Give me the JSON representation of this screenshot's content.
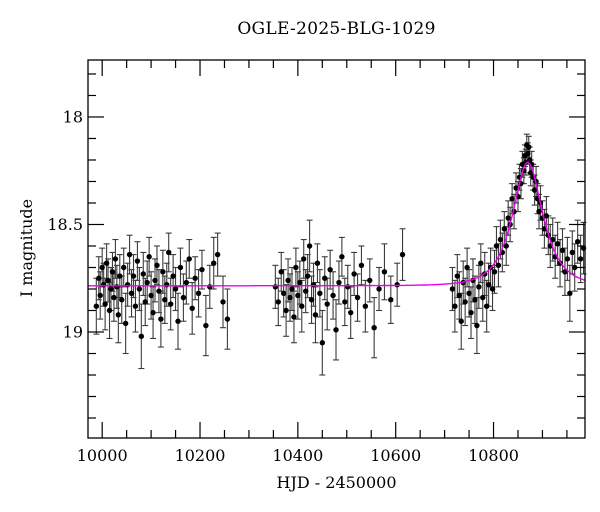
{
  "chart_data": {
    "type": "scatter",
    "title": "OGLE-2025-BLG-1029",
    "xlabel": "HJD - 2450000",
    "ylabel": "I magnitude",
    "x_range": [
      9971,
      10987
    ],
    "y_range": [
      17.735,
      19.493
    ],
    "y_inverted": true,
    "grid": false,
    "x_axis": {
      "major_ticks": [
        10000,
        10200,
        10400,
        10600,
        10800
      ],
      "major_labels": [
        "10000",
        "10200",
        "10400",
        "10600",
        "10800"
      ],
      "minor_step": 50
    },
    "y_axis": {
      "major_ticks": [
        18,
        18.5,
        19
      ],
      "major_labels": [
        "18",
        "18.5",
        "19"
      ],
      "minor_step": 0.1
    },
    "colors": {
      "background": "#ffffff",
      "axis": "#000000",
      "points": "#000000",
      "error_bars": "#3c3c3c",
      "model": "#ee00ee"
    },
    "model": {
      "type": "paczynski",
      "I0": 18.785,
      "t0": 10870,
      "tE": 45,
      "u0": 0.69,
      "color": "#ee00ee"
    },
    "points": [
      [
        9988,
        18.88,
        0.13
      ],
      [
        9993,
        18.75,
        0.1
      ],
      [
        9996,
        18.83,
        0.11
      ],
      [
        10000,
        18.7,
        0.09
      ],
      [
        10003,
        18.78,
        0.1
      ],
      [
        10006,
        18.87,
        0.12
      ],
      [
        10009,
        18.68,
        0.09
      ],
      [
        10012,
        18.76,
        0.1
      ],
      [
        10015,
        18.9,
        0.13
      ],
      [
        10018,
        18.8,
        0.1
      ],
      [
        10021,
        18.72,
        0.09
      ],
      [
        10024,
        18.84,
        0.11
      ],
      [
        10027,
        18.66,
        0.09
      ],
      [
        10030,
        18.79,
        0.1
      ],
      [
        10033,
        18.92,
        0.13
      ],
      [
        10036,
        18.74,
        0.1
      ],
      [
        10040,
        18.85,
        0.11
      ],
      [
        10044,
        18.7,
        0.09
      ],
      [
        10048,
        18.96,
        0.14
      ],
      [
        10052,
        18.78,
        0.1
      ],
      [
        10056,
        18.64,
        0.09
      ],
      [
        10060,
        18.82,
        0.11
      ],
      [
        10064,
        18.74,
        0.1
      ],
      [
        10068,
        18.88,
        0.12
      ],
      [
        10072,
        18.67,
        0.09
      ],
      [
        10076,
        18.8,
        0.1
      ],
      [
        10080,
        19.02,
        0.15
      ],
      [
        10084,
        18.73,
        0.1
      ],
      [
        10088,
        18.86,
        0.11
      ],
      [
        10092,
        18.77,
        0.1
      ],
      [
        10096,
        18.65,
        0.09
      ],
      [
        10100,
        18.83,
        0.11
      ],
      [
        10104,
        18.91,
        0.12
      ],
      [
        10108,
        18.76,
        0.1
      ],
      [
        10112,
        18.69,
        0.09
      ],
      [
        10116,
        18.81,
        0.1
      ],
      [
        10120,
        18.94,
        0.13
      ],
      [
        10124,
        18.72,
        0.1
      ],
      [
        10128,
        18.85,
        0.11
      ],
      [
        10132,
        18.78,
        0.1
      ],
      [
        10136,
        18.63,
        0.09
      ],
      [
        10140,
        18.87,
        0.12
      ],
      [
        10145,
        18.74,
        0.1
      ],
      [
        10150,
        18.8,
        0.1
      ],
      [
        10155,
        18.95,
        0.13
      ],
      [
        10160,
        18.7,
        0.09
      ],
      [
        10166,
        18.84,
        0.11
      ],
      [
        10172,
        18.77,
        0.1
      ],
      [
        10178,
        18.66,
        0.09
      ],
      [
        10184,
        18.89,
        0.12
      ],
      [
        10190,
        18.75,
        0.1
      ],
      [
        10197,
        18.82,
        0.11
      ],
      [
        10204,
        18.71,
        0.09
      ],
      [
        10212,
        18.97,
        0.14
      ],
      [
        10220,
        18.79,
        0.1
      ],
      [
        10228,
        18.68,
        0.12
      ],
      [
        10236,
        18.64,
        0.1
      ],
      [
        10247,
        18.86,
        0.12
      ],
      [
        10256,
        18.94,
        0.14
      ],
      [
        10354,
        18.79,
        0.1
      ],
      [
        10360,
        18.86,
        0.11
      ],
      [
        10366,
        18.72,
        0.09
      ],
      [
        10371,
        18.82,
        0.11
      ],
      [
        10376,
        18.9,
        0.12
      ],
      [
        10380,
        18.76,
        0.1
      ],
      [
        10384,
        18.84,
        0.11
      ],
      [
        10388,
        18.8,
        0.1
      ],
      [
        10392,
        18.93,
        0.12
      ],
      [
        10396,
        18.7,
        0.09
      ],
      [
        10400,
        18.83,
        0.11
      ],
      [
        10404,
        18.77,
        0.1
      ],
      [
        10408,
        18.88,
        0.12
      ],
      [
        10412,
        18.66,
        0.09
      ],
      [
        10416,
        18.81,
        0.1
      ],
      [
        10420,
        18.74,
        0.1
      ],
      [
        10424,
        18.6,
        0.12
      ],
      [
        10428,
        18.85,
        0.11
      ],
      [
        10432,
        18.78,
        0.1
      ],
      [
        10436,
        18.92,
        0.13
      ],
      [
        10440,
        18.68,
        0.09
      ],
      [
        10445,
        18.82,
        0.11
      ],
      [
        10450,
        19.05,
        0.15
      ],
      [
        10455,
        18.75,
        0.1
      ],
      [
        10460,
        18.87,
        0.12
      ],
      [
        10466,
        18.71,
        0.09
      ],
      [
        10472,
        18.83,
        0.11
      ],
      [
        10478,
        18.99,
        0.14
      ],
      [
        10484,
        18.77,
        0.1
      ],
      [
        10490,
        18.65,
        0.09
      ],
      [
        10496,
        18.86,
        0.11
      ],
      [
        10502,
        18.79,
        0.1
      ],
      [
        10508,
        18.91,
        0.12
      ],
      [
        10515,
        18.73,
        0.1
      ],
      [
        10522,
        18.84,
        0.11
      ],
      [
        10530,
        18.69,
        0.09
      ],
      [
        10538,
        18.88,
        0.12
      ],
      [
        10547,
        18.76,
        0.1
      ],
      [
        10556,
        18.98,
        0.14
      ],
      [
        10566,
        18.8,
        0.1
      ],
      [
        10577,
        18.72,
        0.13
      ],
      [
        10590,
        18.85,
        0.11
      ],
      [
        10603,
        18.78,
        0.1
      ],
      [
        10614,
        18.64,
        0.12
      ],
      [
        10716,
        18.8,
        0.1
      ],
      [
        10721,
        18.88,
        0.12
      ],
      [
        10726,
        18.74,
        0.1
      ],
      [
        10730,
        18.83,
        0.11
      ],
      [
        10734,
        18.95,
        0.13
      ],
      [
        10738,
        18.77,
        0.1
      ],
      [
        10742,
        18.86,
        0.11
      ],
      [
        10746,
        18.7,
        0.09
      ],
      [
        10750,
        18.82,
        0.11
      ],
      [
        10754,
        18.91,
        0.12
      ],
      [
        10758,
        18.76,
        0.1
      ],
      [
        10762,
        18.85,
        0.11
      ],
      [
        10766,
        18.97,
        0.13
      ],
      [
        10770,
        18.79,
        0.1
      ],
      [
        10774,
        18.68,
        0.09
      ],
      [
        10778,
        18.84,
        0.11
      ],
      [
        10782,
        18.73,
        0.1
      ],
      [
        10786,
        18.88,
        0.12
      ],
      [
        10790,
        18.78,
        0.1
      ],
      [
        10794,
        18.7,
        0.09
      ],
      [
        10798,
        18.8,
        0.1
      ],
      [
        10802,
        18.72,
        0.1
      ],
      [
        10806,
        18.6,
        0.09
      ],
      [
        10810,
        18.69,
        0.1
      ],
      [
        10814,
        18.57,
        0.09
      ],
      [
        10818,
        18.63,
        0.09
      ],
      [
        10822,
        18.52,
        0.08
      ],
      [
        10826,
        18.6,
        0.09
      ],
      [
        10830,
        18.47,
        0.08
      ],
      [
        10834,
        18.5,
        0.08
      ],
      [
        10838,
        18.38,
        0.07
      ],
      [
        10842,
        18.44,
        0.08
      ],
      [
        10846,
        18.33,
        0.07
      ],
      [
        10850,
        18.37,
        0.07
      ],
      [
        10853,
        18.28,
        0.06
      ],
      [
        10856,
        18.31,
        0.07
      ],
      [
        10859,
        18.22,
        0.06
      ],
      [
        10862,
        18.25,
        0.06
      ],
      [
        10864,
        18.18,
        0.05
      ],
      [
        10866,
        18.21,
        0.06
      ],
      [
        10868,
        18.13,
        0.05
      ],
      [
        10870,
        18.17,
        0.05
      ],
      [
        10872,
        18.14,
        0.05
      ],
      [
        10874,
        18.2,
        0.06
      ],
      [
        10876,
        18.26,
        0.06
      ],
      [
        10878,
        18.22,
        0.06
      ],
      [
        10881,
        18.28,
        0.06
      ],
      [
        10884,
        18.34,
        0.07
      ],
      [
        10887,
        18.3,
        0.07
      ],
      [
        10890,
        18.38,
        0.07
      ],
      [
        10893,
        18.44,
        0.08
      ],
      [
        10896,
        18.4,
        0.08
      ],
      [
        10900,
        18.47,
        0.08
      ],
      [
        10904,
        18.52,
        0.09
      ],
      [
        10908,
        18.46,
        0.09
      ],
      [
        10912,
        18.55,
        0.09
      ],
      [
        10916,
        18.6,
        0.1
      ],
      [
        10921,
        18.57,
        0.1
      ],
      [
        10926,
        18.65,
        0.1
      ],
      [
        10931,
        18.59,
        0.1
      ],
      [
        10936,
        18.68,
        0.11
      ],
      [
        10941,
        18.62,
        0.1
      ],
      [
        10946,
        18.72,
        0.11
      ],
      [
        10951,
        18.66,
        0.1
      ],
      [
        10956,
        18.82,
        0.13
      ],
      [
        10961,
        18.63,
        0.1
      ],
      [
        10966,
        18.7,
        0.11
      ],
      [
        10972,
        18.58,
        0.1
      ],
      [
        10978,
        18.66,
        0.11
      ],
      [
        10984,
        18.61,
        0.12
      ]
    ]
  }
}
